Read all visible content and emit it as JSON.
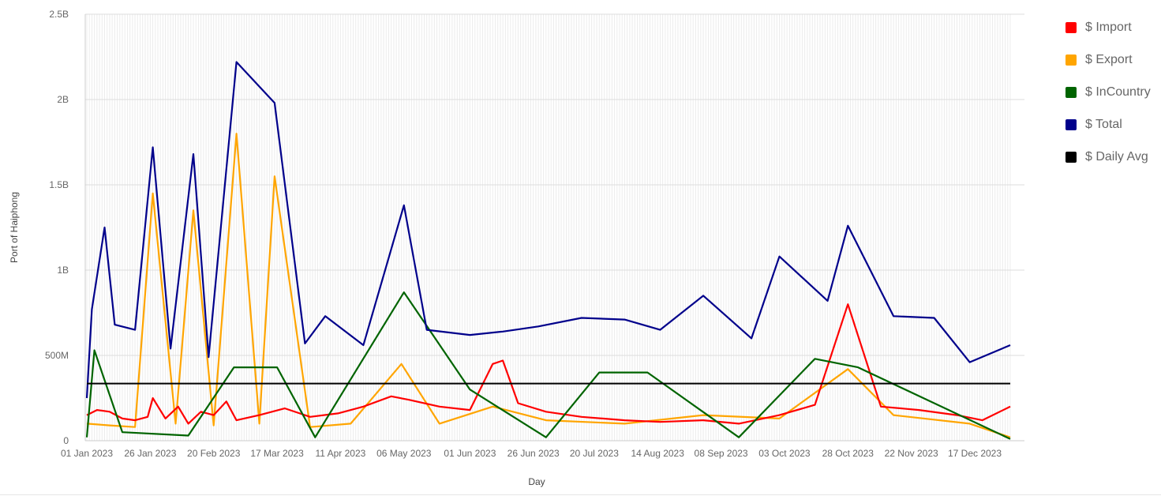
{
  "chart_data": {
    "type": "line",
    "xlabel": "Day",
    "ylabel": "Port of Haiphong",
    "x_start": "2023-01-01",
    "x_end": "2023-12-31",
    "ylim": [
      0,
      2500000000
    ],
    "y_ticks": [
      {
        "value": 0,
        "label": "0"
      },
      {
        "value": 500000000,
        "label": "500M"
      },
      {
        "value": 1000000000,
        "label": "1B"
      },
      {
        "value": 1500000000,
        "label": "1.5B"
      },
      {
        "value": 2000000000,
        "label": "2B"
      },
      {
        "value": 2500000000,
        "label": "2.5B"
      }
    ],
    "x_ticks": [
      {
        "date": "2023-01-01",
        "label": "01 Jan 2023"
      },
      {
        "date": "2023-01-26",
        "label": "26 Jan 2023"
      },
      {
        "date": "2023-02-20",
        "label": "20 Feb 2023"
      },
      {
        "date": "2023-03-17",
        "label": "17 Mar 2023"
      },
      {
        "date": "2023-04-11",
        "label": "11 Apr 2023"
      },
      {
        "date": "2023-05-06",
        "label": "06 May 2023"
      },
      {
        "date": "2023-06-01",
        "label": "01 Jun 2023"
      },
      {
        "date": "2023-06-26",
        "label": "26 Jun 2023"
      },
      {
        "date": "2023-07-20",
        "label": "20 Jul 2023"
      },
      {
        "date": "2023-08-14",
        "label": "14 Aug 2023"
      },
      {
        "date": "2023-09-08",
        "label": "08 Sep 2023"
      },
      {
        "date": "2023-10-03",
        "label": "03 Oct 2023"
      },
      {
        "date": "2023-10-28",
        "label": "28 Oct 2023"
      },
      {
        "date": "2023-11-22",
        "label": "22 Nov 2023"
      },
      {
        "date": "2023-12-17",
        "label": "17 Dec 2023"
      }
    ],
    "grid": "vertical line per day, horizontal at y ticks",
    "legend_position": "right",
    "series": [
      {
        "name": "$ Import",
        "color": "#ff0000",
        "values": [
          {
            "date": "2023-01-01",
            "value": 150000000
          },
          {
            "date": "2023-01-05",
            "value": 180000000
          },
          {
            "date": "2023-01-10",
            "value": 170000000
          },
          {
            "date": "2023-01-15",
            "value": 130000000
          },
          {
            "date": "2023-01-20",
            "value": 120000000
          },
          {
            "date": "2023-01-25",
            "value": 140000000
          },
          {
            "date": "2023-01-27",
            "value": 250000000
          },
          {
            "date": "2023-02-01",
            "value": 130000000
          },
          {
            "date": "2023-02-06",
            "value": 200000000
          },
          {
            "date": "2023-02-10",
            "value": 100000000
          },
          {
            "date": "2023-02-15",
            "value": 170000000
          },
          {
            "date": "2023-02-20",
            "value": 150000000
          },
          {
            "date": "2023-02-25",
            "value": 230000000
          },
          {
            "date": "2023-03-01",
            "value": 120000000
          },
          {
            "date": "2023-03-10",
            "value": 150000000
          },
          {
            "date": "2023-03-20",
            "value": 190000000
          },
          {
            "date": "2023-03-30",
            "value": 140000000
          },
          {
            "date": "2023-04-10",
            "value": 160000000
          },
          {
            "date": "2023-04-20",
            "value": 200000000
          },
          {
            "date": "2023-05-01",
            "value": 260000000
          },
          {
            "date": "2023-05-08",
            "value": 240000000
          },
          {
            "date": "2023-05-20",
            "value": 200000000
          },
          {
            "date": "2023-06-01",
            "value": 180000000
          },
          {
            "date": "2023-06-10",
            "value": 450000000
          },
          {
            "date": "2023-06-14",
            "value": 470000000
          },
          {
            "date": "2023-06-20",
            "value": 220000000
          },
          {
            "date": "2023-07-01",
            "value": 170000000
          },
          {
            "date": "2023-07-15",
            "value": 140000000
          },
          {
            "date": "2023-08-01",
            "value": 120000000
          },
          {
            "date": "2023-08-15",
            "value": 110000000
          },
          {
            "date": "2023-09-01",
            "value": 120000000
          },
          {
            "date": "2023-09-15",
            "value": 100000000
          },
          {
            "date": "2023-10-01",
            "value": 150000000
          },
          {
            "date": "2023-10-15",
            "value": 210000000
          },
          {
            "date": "2023-10-28",
            "value": 800000000
          },
          {
            "date": "2023-11-10",
            "value": 200000000
          },
          {
            "date": "2023-11-25",
            "value": 180000000
          },
          {
            "date": "2023-12-10",
            "value": 150000000
          },
          {
            "date": "2023-12-20",
            "value": 120000000
          },
          {
            "date": "2023-12-31",
            "value": 200000000
          }
        ]
      },
      {
        "name": "$ Export",
        "color": "#ffa500",
        "values": [
          {
            "date": "2023-01-01",
            "value": 100000000
          },
          {
            "date": "2023-01-10",
            "value": 90000000
          },
          {
            "date": "2023-01-20",
            "value": 80000000
          },
          {
            "date": "2023-01-27",
            "value": 1450000000
          },
          {
            "date": "2023-02-05",
            "value": 100000000
          },
          {
            "date": "2023-02-12",
            "value": 1350000000
          },
          {
            "date": "2023-02-20",
            "value": 90000000
          },
          {
            "date": "2023-03-01",
            "value": 1800000000
          },
          {
            "date": "2023-03-10",
            "value": 100000000
          },
          {
            "date": "2023-03-16",
            "value": 1550000000
          },
          {
            "date": "2023-03-30",
            "value": 80000000
          },
          {
            "date": "2023-04-15",
            "value": 100000000
          },
          {
            "date": "2023-05-05",
            "value": 450000000
          },
          {
            "date": "2023-05-20",
            "value": 100000000
          },
          {
            "date": "2023-06-10",
            "value": 200000000
          },
          {
            "date": "2023-07-01",
            "value": 120000000
          },
          {
            "date": "2023-08-01",
            "value": 100000000
          },
          {
            "date": "2023-09-01",
            "value": 150000000
          },
          {
            "date": "2023-10-01",
            "value": 130000000
          },
          {
            "date": "2023-10-28",
            "value": 420000000
          },
          {
            "date": "2023-11-15",
            "value": 150000000
          },
          {
            "date": "2023-12-15",
            "value": 100000000
          },
          {
            "date": "2023-12-31",
            "value": 20000000
          }
        ]
      },
      {
        "name": "$ InCountry",
        "color": "#006400",
        "values": [
          {
            "date": "2023-01-01",
            "value": 20000000
          },
          {
            "date": "2023-01-04",
            "value": 530000000
          },
          {
            "date": "2023-01-15",
            "value": 50000000
          },
          {
            "date": "2023-02-10",
            "value": 30000000
          },
          {
            "date": "2023-02-28",
            "value": 430000000
          },
          {
            "date": "2023-03-17",
            "value": 430000000
          },
          {
            "date": "2023-04-01",
            "value": 20000000
          },
          {
            "date": "2023-05-06",
            "value": 870000000
          },
          {
            "date": "2023-06-01",
            "value": 300000000
          },
          {
            "date": "2023-07-01",
            "value": 20000000
          },
          {
            "date": "2023-07-22",
            "value": 400000000
          },
          {
            "date": "2023-08-10",
            "value": 400000000
          },
          {
            "date": "2023-09-15",
            "value": 20000000
          },
          {
            "date": "2023-10-15",
            "value": 480000000
          },
          {
            "date": "2023-11-01",
            "value": 430000000
          },
          {
            "date": "2023-12-31",
            "value": 10000000
          }
        ]
      },
      {
        "name": "$ Total",
        "color": "#00008b",
        "values": [
          {
            "date": "2023-01-01",
            "value": 250000000
          },
          {
            "date": "2023-01-03",
            "value": 770000000
          },
          {
            "date": "2023-01-08",
            "value": 1250000000
          },
          {
            "date": "2023-01-12",
            "value": 680000000
          },
          {
            "date": "2023-01-20",
            "value": 650000000
          },
          {
            "date": "2023-01-27",
            "value": 1720000000
          },
          {
            "date": "2023-02-03",
            "value": 540000000
          },
          {
            "date": "2023-02-12",
            "value": 1680000000
          },
          {
            "date": "2023-02-18",
            "value": 490000000
          },
          {
            "date": "2023-03-01",
            "value": 2220000000
          },
          {
            "date": "2023-03-16",
            "value": 1980000000
          },
          {
            "date": "2023-03-28",
            "value": 570000000
          },
          {
            "date": "2023-04-05",
            "value": 730000000
          },
          {
            "date": "2023-04-20",
            "value": 560000000
          },
          {
            "date": "2023-05-06",
            "value": 1380000000
          },
          {
            "date": "2023-05-15",
            "value": 650000000
          },
          {
            "date": "2023-06-01",
            "value": 620000000
          },
          {
            "date": "2023-06-14",
            "value": 640000000
          },
          {
            "date": "2023-06-28",
            "value": 670000000
          },
          {
            "date": "2023-07-15",
            "value": 720000000
          },
          {
            "date": "2023-08-01",
            "value": 710000000
          },
          {
            "date": "2023-08-15",
            "value": 650000000
          },
          {
            "date": "2023-09-01",
            "value": 850000000
          },
          {
            "date": "2023-09-20",
            "value": 600000000
          },
          {
            "date": "2023-10-01",
            "value": 1080000000
          },
          {
            "date": "2023-10-20",
            "value": 820000000
          },
          {
            "date": "2023-10-28",
            "value": 1260000000
          },
          {
            "date": "2023-11-15",
            "value": 730000000
          },
          {
            "date": "2023-12-01",
            "value": 720000000
          },
          {
            "date": "2023-12-15",
            "value": 460000000
          },
          {
            "date": "2023-12-31",
            "value": 560000000
          }
        ]
      },
      {
        "name": "$ Daily Avg",
        "color": "#000000",
        "values": [
          {
            "date": "2023-01-01",
            "value": 335000000
          },
          {
            "date": "2023-12-31",
            "value": 335000000
          }
        ]
      }
    ]
  }
}
